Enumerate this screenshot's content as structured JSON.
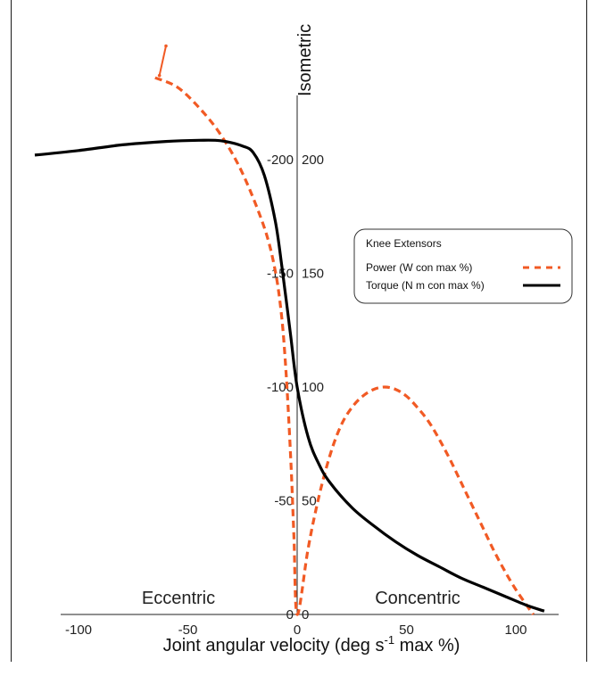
{
  "chart_data": {
    "type": "line",
    "xlabel": "Joint angular velocity (deg s",
    "xlabel_sup": "-1",
    "xlabel_suffix": " max %)",
    "isometric_label": "Isometric",
    "region_labels": {
      "left": "Eccentric",
      "right": "Concentric"
    },
    "x_ticks": [
      -100,
      -50,
      0,
      50,
      100
    ],
    "y_ticks_left": [
      "0",
      "-50",
      "-100",
      "-150",
      "-200"
    ],
    "y_ticks_right": [
      "0",
      "50",
      "100",
      "150",
      "200"
    ],
    "y_tick_values": [
      0,
      50,
      100,
      150,
      200
    ],
    "xlim": [
      -120,
      120
    ],
    "ylim": [
      0,
      230
    ],
    "legend": {
      "title": "Knee Extensors",
      "placement": "top-right",
      "entries": [
        {
          "label": "Power (W con max %)",
          "color": "#f15a24",
          "dash": true
        },
        {
          "label": "Torque (N m con max %)",
          "color": "#000000",
          "dash": false
        }
      ]
    },
    "series": [
      {
        "name": "Power (W con max %)",
        "color": "#f15a24",
        "style": "dashed",
        "points": [
          [
            -65,
            236
          ],
          [
            -55,
            232
          ],
          [
            -45,
            223
          ],
          [
            -35,
            211
          ],
          [
            -25,
            194
          ],
          [
            -15,
            170
          ],
          [
            -10,
            151
          ],
          [
            -7,
            130
          ],
          [
            -5,
            105
          ],
          [
            -3,
            70
          ],
          [
            -1.5,
            35
          ],
          [
            0,
            0
          ],
          [
            5,
            29
          ],
          [
            10,
            52
          ],
          [
            15,
            70
          ],
          [
            20,
            83
          ],
          [
            25,
            91
          ],
          [
            30,
            96
          ],
          [
            35,
            99
          ],
          [
            40,
            100
          ],
          [
            45,
            99
          ],
          [
            50,
            96
          ],
          [
            55,
            91
          ],
          [
            60,
            85
          ],
          [
            65,
            77
          ],
          [
            70,
            68
          ],
          [
            75,
            58
          ],
          [
            80,
            48
          ],
          [
            85,
            38
          ],
          [
            90,
            28
          ],
          [
            95,
            19
          ],
          [
            100,
            11
          ],
          [
            105,
            4
          ],
          [
            108,
            0
          ]
        ],
        "error_bar": {
          "x": [
            -63,
            -60
          ],
          "y": [
            237,
            250
          ]
        }
      },
      {
        "name": "Torque (N m con max %)",
        "color": "#000000",
        "style": "solid",
        "points": [
          [
            -120,
            202
          ],
          [
            -100,
            204
          ],
          [
            -80,
            206.5
          ],
          [
            -60,
            208
          ],
          [
            -45,
            208.5
          ],
          [
            -35,
            208.3
          ],
          [
            -25,
            206
          ],
          [
            -20,
            203
          ],
          [
            -15,
            193
          ],
          [
            -10,
            173
          ],
          [
            -7,
            153
          ],
          [
            -5,
            138
          ],
          [
            -3,
            123
          ],
          [
            0,
            100
          ],
          [
            5,
            78
          ],
          [
            10,
            66
          ],
          [
            15,
            58
          ],
          [
            25,
            47
          ],
          [
            35,
            39
          ],
          [
            45,
            32
          ],
          [
            55,
            26
          ],
          [
            65,
            21
          ],
          [
            75,
            16
          ],
          [
            85,
            12
          ],
          [
            95,
            8
          ],
          [
            105,
            4
          ],
          [
            113,
            1.5
          ]
        ]
      }
    ]
  }
}
